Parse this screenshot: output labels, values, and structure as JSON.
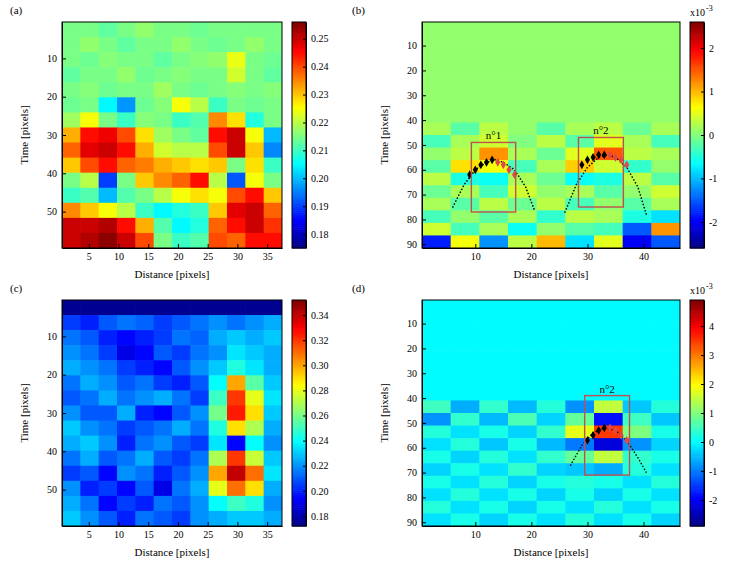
{
  "chart_data": [
    {
      "type": "heatmap",
      "panel": "(a)",
      "x_label": "Distance [pixels]",
      "y_label": "Time [pixels]",
      "xlim": [
        0.5,
        37.5
      ],
      "ylim": [
        0.5,
        59.5
      ],
      "xticks": [
        5,
        10,
        15,
        20,
        25,
        30,
        35
      ],
      "yticks": [
        10,
        20,
        30,
        40,
        50
      ],
      "colorbar": {
        "lim": [
          0.175,
          0.256
        ],
        "ticks": [
          0.18,
          0.19,
          {
            "value": 0.2,
            "label": "0.20"
          },
          0.21,
          0.22,
          0.23,
          0.24,
          0.25
        ]
      },
      "cells": [
        [
          0.215,
          0.215,
          0.213,
          0.215,
          0.217,
          0.215,
          0.215,
          0.214,
          0.215,
          0.215,
          0.215,
          0.215
        ],
        [
          0.215,
          0.217,
          0.215,
          0.213,
          0.215,
          0.215,
          0.217,
          0.215,
          0.214,
          0.215,
          0.217,
          0.215
        ],
        [
          0.215,
          0.214,
          0.216,
          0.215,
          0.215,
          0.213,
          0.215,
          0.216,
          0.217,
          0.224,
          0.215,
          0.214
        ],
        [
          0.213,
          0.215,
          0.215,
          0.217,
          0.214,
          0.215,
          0.216,
          0.215,
          0.215,
          0.222,
          0.215,
          0.213
        ],
        [
          0.215,
          0.216,
          0.214,
          0.215,
          0.215,
          0.218,
          0.215,
          0.214,
          0.215,
          0.216,
          0.215,
          0.216
        ],
        [
          0.214,
          0.215,
          0.205,
          0.197,
          0.214,
          0.216,
          0.225,
          0.22,
          0.21,
          0.215,
          0.214,
          0.215
        ],
        [
          0.218,
          0.225,
          0.215,
          0.21,
          0.216,
          0.215,
          0.21,
          0.212,
          0.235,
          0.228,
          0.208,
          0.215
        ],
        [
          0.232,
          0.245,
          0.247,
          0.24,
          0.228,
          0.218,
          0.215,
          0.213,
          0.245,
          0.25,
          0.225,
          0.2
        ],
        [
          0.238,
          0.248,
          0.25,
          0.245,
          0.232,
          0.222,
          0.22,
          0.22,
          0.24,
          0.25,
          0.23,
          0.196
        ],
        [
          0.23,
          0.24,
          0.245,
          0.238,
          0.236,
          0.232,
          0.23,
          0.228,
          0.23,
          0.215,
          0.228,
          0.21
        ],
        [
          0.215,
          0.22,
          0.19,
          0.215,
          0.23,
          0.235,
          0.238,
          0.245,
          0.22,
          0.192,
          0.225,
          0.215
        ],
        [
          0.21,
          0.212,
          0.2,
          0.212,
          0.215,
          0.22,
          0.225,
          0.228,
          0.225,
          0.24,
          0.245,
          0.23
        ],
        [
          0.235,
          0.23,
          0.225,
          0.22,
          0.21,
          0.205,
          0.208,
          0.21,
          0.23,
          0.248,
          0.25,
          0.238
        ],
        [
          0.25,
          0.25,
          0.252,
          0.245,
          0.232,
          0.212,
          0.205,
          0.208,
          0.238,
          0.245,
          0.25,
          0.242
        ],
        [
          0.25,
          0.252,
          0.255,
          0.25,
          0.24,
          0.215,
          0.21,
          0.212,
          0.24,
          0.238,
          0.245,
          0.245
        ]
      ]
    },
    {
      "type": "heatmap",
      "panel": "(b)",
      "x_label": "Distance [pixels]",
      "y_label": "Time [pixels]",
      "xlim": [
        0.5,
        46.5
      ],
      "ylim": [
        0.5,
        91.5
      ],
      "xticks": [
        10,
        20,
        30,
        40
      ],
      "yticks": [
        10,
        20,
        30,
        40,
        50,
        60,
        70,
        80,
        90
      ],
      "colorbar": {
        "lim": [
          -2.6,
          2.6
        ],
        "ticks": [
          -2,
          -1,
          0,
          1,
          2
        ],
        "multiplier": "x10",
        "exponent": "-3"
      },
      "cells": [
        [
          0.1,
          0.1,
          0.1,
          0.1,
          0.1,
          0.1,
          0.1,
          0.1,
          0.1
        ],
        [
          0.1,
          0.1,
          0.1,
          0.1,
          0.1,
          0.1,
          0.1,
          0.1,
          0.1
        ],
        [
          0.1,
          0.1,
          0.1,
          0.1,
          0.1,
          0.1,
          0.1,
          0.1,
          0.1
        ],
        [
          0.1,
          0.1,
          0.1,
          0.1,
          0.1,
          0.1,
          0.1,
          0.1,
          0.1
        ],
        [
          0.1,
          0.1,
          0.1,
          0.1,
          0.1,
          0.1,
          0.1,
          0.1,
          0.1
        ],
        [
          0.1,
          0.1,
          0.1,
          0.1,
          0.1,
          0.1,
          0.1,
          0.1,
          0.1
        ],
        [
          0.1,
          0.1,
          0.1,
          0.1,
          0.1,
          0.1,
          0.1,
          0.1,
          0.1
        ],
        [
          0.1,
          0.1,
          0.1,
          0.1,
          0.1,
          0.1,
          0.1,
          0.1,
          0.1
        ],
        [
          0.2,
          -0.2,
          0.3,
          0.1,
          -0.2,
          0.2,
          0.3,
          -0.1,
          0.2
        ],
        [
          -0.3,
          0.2,
          0.4,
          0,
          0.3,
          -0.2,
          0.5,
          0.2,
          -0.3
        ],
        [
          0.1,
          0.3,
          1.2,
          0.2,
          -0.1,
          0.5,
          1.5,
          0.3,
          0.2
        ],
        [
          -0.2,
          0.8,
          0.6,
          -0.3,
          0.2,
          0.9,
          0.4,
          -0.4,
          0.1
        ],
        [
          0.3,
          -0.5,
          -0.6,
          0.2,
          -0.1,
          -0.6,
          -0.5,
          0.3,
          -0.2
        ],
        [
          -0.1,
          0.2,
          -0.3,
          0.4,
          0.1,
          0.2,
          -0.2,
          0.1,
          0.4
        ],
        [
          0.2,
          -0.2,
          0.3,
          -0.1,
          0.3,
          -0.3,
          0.1,
          -0.2,
          0.2
        ],
        [
          -0.3,
          0.1,
          -0.2,
          0.2,
          -0.4,
          0.3,
          0.2,
          -0.5,
          -0.8
        ],
        [
          0.4,
          -0.3,
          0.2,
          -0.6,
          0.1,
          -0.2,
          -0.3,
          -1.5,
          1.2
        ],
        [
          -1.8,
          0.6,
          -1.2,
          0.3,
          1.0,
          -0.8,
          0.5,
          -2.0,
          -1.5
        ]
      ],
      "boxes": [
        {
          "label": "n°1",
          "x": [
            9.3,
            17.2
          ],
          "y": [
            49,
            77
          ]
        },
        {
          "label": "n°2",
          "x": [
            28.4,
            36.4
          ],
          "y": [
            47,
            75
          ]
        }
      ],
      "series": [
        {
          "x": [
            6,
            8,
            10,
            12,
            13.5,
            15,
            17,
            19,
            20.5
          ],
          "values": [
            75,
            66,
            60,
            57,
            56,
            57,
            60,
            67,
            76
          ],
          "color": "#000000",
          "marker": "none",
          "line_style": "dotted"
        },
        {
          "x": [
            26,
            28,
            30,
            32,
            33.5,
            35,
            37,
            39,
            40.5
          ],
          "values": [
            77,
            66,
            59,
            55,
            54,
            55,
            59,
            67,
            78
          ],
          "color": "#000000",
          "marker": "none",
          "line_style": "dotted"
        },
        {
          "x": [
            9,
            10,
            11,
            12,
            13
          ],
          "values": [
            62,
            60,
            58,
            57,
            56
          ],
          "color": "#000000",
          "marker": "diamond",
          "line_style": "none"
        },
        {
          "x": [
            14,
            15,
            16,
            17
          ],
          "values": [
            57,
            58,
            60,
            62
          ],
          "color": "#e04848",
          "marker": "diamond",
          "line_style": "none"
        },
        {
          "x": [
            29,
            30,
            31,
            32,
            33
          ],
          "values": [
            58,
            56,
            55,
            54,
            54
          ],
          "color": "#000000",
          "marker": "diamond",
          "line_style": "none"
        },
        {
          "x": [
            34,
            35,
            36,
            37
          ],
          "values": [
            54,
            55,
            56,
            58
          ],
          "color": "#e04848",
          "marker": "diamond",
          "line_style": "none"
        }
      ]
    },
    {
      "type": "heatmap",
      "panel": "(c)",
      "x_label": "Distance [pixels]",
      "y_label": "Time [pixels]",
      "xlim": [
        0.5,
        37.5
      ],
      "ylim": [
        0.5,
        59.5
      ],
      "xticks": [
        5,
        10,
        15,
        20,
        25,
        30,
        35
      ],
      "yticks": [
        10,
        20,
        30,
        40,
        50
      ],
      "colorbar": {
        "lim": [
          0.172,
          0.352
        ],
        "ticks": [
          0.18,
          {
            "value": 0.2,
            "label": "0.20"
          },
          0.22,
          0.24,
          0.26,
          0.28,
          {
            "value": 0.3,
            "label": "0.30"
          },
          0.32,
          0.34
        ]
      },
      "cells": [
        [
          0.175,
          0.175,
          0.175,
          0.175,
          0.175,
          0.175,
          0.175,
          0.175,
          0.175,
          0.175,
          0.175,
          0.175
        ],
        [
          0.205,
          0.2,
          0.21,
          0.215,
          0.212,
          0.205,
          0.21,
          0.215,
          0.22,
          0.215,
          0.22,
          0.225
        ],
        [
          0.215,
          0.21,
          0.2,
          0.195,
          0.2,
          0.205,
          0.215,
          0.212,
          0.225,
          0.23,
          0.225,
          0.23
        ],
        [
          0.22,
          0.215,
          0.205,
          0.19,
          0.195,
          0.21,
          0.205,
          0.215,
          0.22,
          0.235,
          0.23,
          0.225
        ],
        [
          0.225,
          0.22,
          0.215,
          0.205,
          0.2,
          0.195,
          0.21,
          0.22,
          0.23,
          0.245,
          0.235,
          0.225
        ],
        [
          0.215,
          0.225,
          0.22,
          0.21,
          0.215,
          0.205,
          0.2,
          0.21,
          0.24,
          0.3,
          0.255,
          0.23
        ],
        [
          0.21,
          0.215,
          0.225,
          0.215,
          0.22,
          0.225,
          0.215,
          0.205,
          0.25,
          0.32,
          0.28,
          0.235
        ],
        [
          0.22,
          0.21,
          0.21,
          0.225,
          0.2,
          0.195,
          0.21,
          0.22,
          0.26,
          0.325,
          0.29,
          0.23
        ],
        [
          0.23,
          0.22,
          0.215,
          0.205,
          0.21,
          0.215,
          0.225,
          0.215,
          0.245,
          0.29,
          0.27,
          0.225
        ],
        [
          0.225,
          0.23,
          0.22,
          0.2,
          0.215,
          0.22,
          0.21,
          0.205,
          0.235,
          0.195,
          0.24,
          0.22
        ],
        [
          0.215,
          0.225,
          0.21,
          0.215,
          0.225,
          0.21,
          0.205,
          0.215,
          0.27,
          0.32,
          0.275,
          0.23
        ],
        [
          0.205,
          0.21,
          0.195,
          0.22,
          0.215,
          0.2,
          0.21,
          0.22,
          0.3,
          0.34,
          0.31,
          0.235
        ],
        [
          0.22,
          0.2,
          0.205,
          0.195,
          0.21,
          0.19,
          0.215,
          0.225,
          0.28,
          0.31,
          0.29,
          0.225
        ],
        [
          0.225,
          0.215,
          0.195,
          0.205,
          0.2,
          0.215,
          0.21,
          0.22,
          0.24,
          0.25,
          0.245,
          0.22
        ],
        [
          0.23,
          0.22,
          0.21,
          0.2,
          0.215,
          0.21,
          0.205,
          0.22,
          0.225,
          0.23,
          0.23,
          0.225
        ]
      ]
    },
    {
      "type": "heatmap",
      "panel": "(d)",
      "x_label": "Distance [pixels]",
      "y_label": "Time [pixels]",
      "xlim": [
        0.5,
        46.5
      ],
      "ylim": [
        0.5,
        91.5
      ],
      "xticks": [
        10,
        20,
        30,
        40
      ],
      "yticks": [
        10,
        20,
        30,
        40,
        50,
        60,
        70,
        80,
        90
      ],
      "colorbar": {
        "lim": [
          -2.9,
          4.9
        ],
        "ticks": [
          -2,
          -1,
          0,
          1,
          2,
          3,
          4
        ],
        "multiplier": "x10",
        "exponent": "-3"
      },
      "cells": [
        [
          0,
          0,
          0,
          0,
          0,
          0,
          0,
          0,
          0
        ],
        [
          0,
          0,
          0,
          0,
          0,
          0,
          0,
          0,
          0
        ],
        [
          0,
          0,
          0,
          0,
          0,
          0,
          0,
          0,
          0
        ],
        [
          0,
          0,
          0,
          0,
          0,
          0,
          0,
          0,
          0
        ],
        [
          0,
          0,
          0,
          0,
          0,
          0,
          0,
          0,
          0
        ],
        [
          0,
          0,
          0,
          0,
          0,
          0,
          0,
          0,
          0
        ],
        [
          0,
          0,
          0,
          0,
          0,
          0,
          0,
          0,
          0
        ],
        [
          0,
          0,
          0,
          0,
          0,
          0,
          0,
          0,
          0
        ],
        [
          0.5,
          -0.6,
          0.4,
          -0.5,
          0.3,
          -0.8,
          1.5,
          -0.4,
          0.3
        ],
        [
          -0.8,
          0.4,
          -0.5,
          0.6,
          -0.3,
          0.8,
          -1.8,
          0.5,
          -0.4
        ],
        [
          0.3,
          -0.2,
          0.2,
          -0.3,
          0.4,
          1.8,
          3.5,
          1.0,
          0.2
        ],
        [
          -0.2,
          0.3,
          -0.4,
          0.2,
          -0.5,
          -1.0,
          -2.2,
          -0.8,
          -0.3
        ],
        [
          0.2,
          -0.3,
          0.3,
          -0.2,
          0.4,
          0.8,
          1.5,
          0.4,
          0.2
        ],
        [
          -0.3,
          0.2,
          -0.2,
          0.4,
          -0.3,
          -0.4,
          -0.6,
          0.3,
          -0.2
        ],
        [
          0.2,
          -0.2,
          0.3,
          -0.3,
          0.2,
          0.3,
          0.2,
          -0.2,
          0.3
        ],
        [
          -0.2,
          0.3,
          -0.2,
          0.2,
          -0.3,
          0.2,
          -0.3,
          0.2,
          -0.2
        ],
        [
          0.3,
          -0.2,
          0.2,
          -0.3,
          0.2,
          -0.2,
          0.3,
          -0.2,
          0.2
        ],
        [
          -0.2,
          0.2,
          -0.3,
          0.2,
          -0.2,
          0.3,
          -0.2,
          0.2,
          -0.3
        ]
      ],
      "boxes": [
        {
          "label": "n°2",
          "x": [
            29.5,
            37.5
          ],
          "y": [
            39,
            71
          ]
        }
      ],
      "series": [
        {
          "x": [
            27,
            29,
            31,
            33,
            35,
            37,
            39,
            40.5
          ],
          "values": [
            67,
            59,
            54,
            52,
            53,
            57,
            64,
            70
          ],
          "color": "#000000",
          "marker": "none",
          "line_style": "dotted"
        },
        {
          "x": [
            30,
            31,
            32,
            33
          ],
          "values": [
            57,
            55,
            53,
            52
          ],
          "color": "#000000",
          "marker": "diamond",
          "line_style": "none"
        },
        {
          "x": [
            34,
            35,
            36,
            37
          ],
          "values": [
            52,
            53,
            55,
            57
          ],
          "color": "#e04848",
          "marker": "diamond",
          "line_style": "none"
        }
      ]
    }
  ]
}
